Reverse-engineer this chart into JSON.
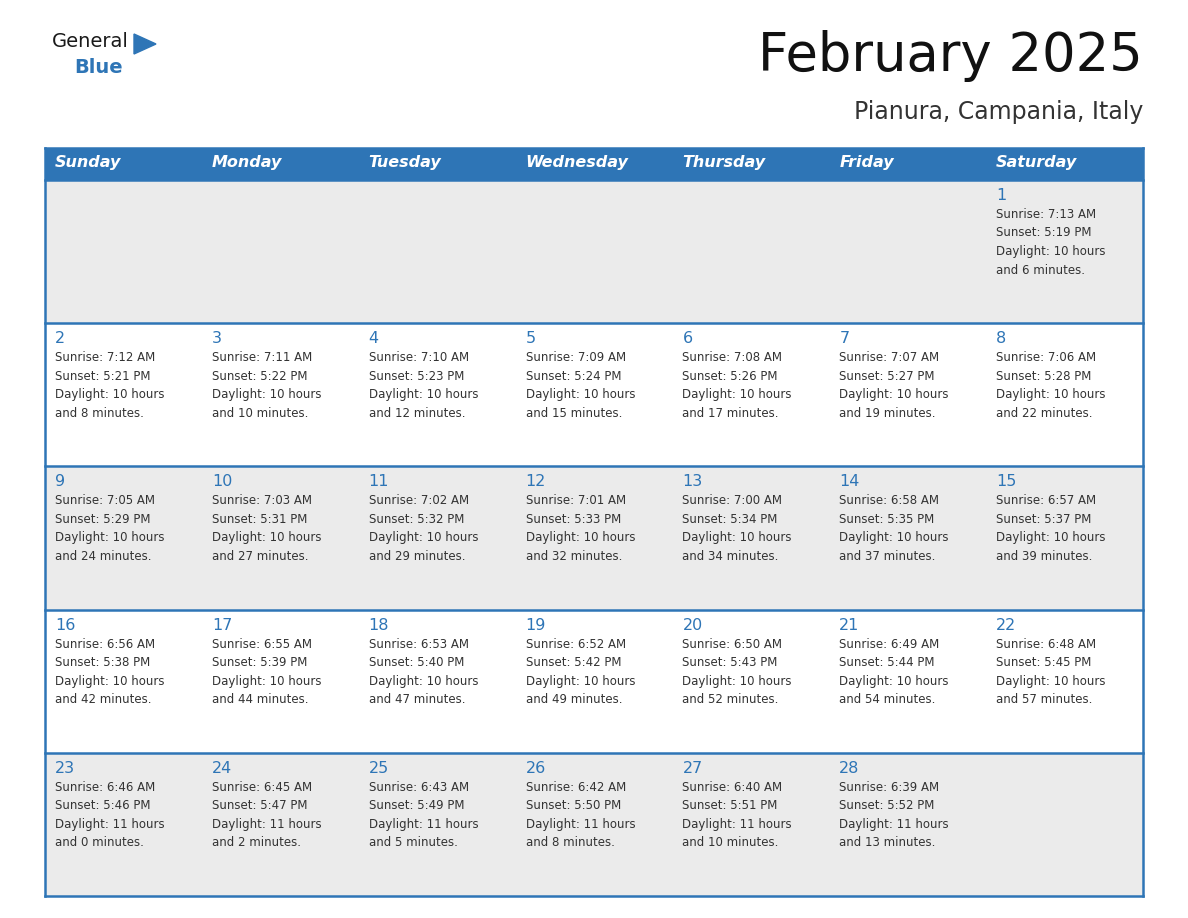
{
  "title": "February 2025",
  "subtitle": "Pianura, Campania, Italy",
  "header_bg_color": "#2E75B6",
  "header_text_color": "#FFFFFF",
  "cell_border_color": "#2E75B6",
  "day_number_color": "#2E75B6",
  "info_text_color": "#333333",
  "background_color": "#FFFFFF",
  "row_bg_even": "#FFFFFF",
  "row_bg_odd": "#EBEBEB",
  "days_of_week": [
    "Sunday",
    "Monday",
    "Tuesday",
    "Wednesday",
    "Thursday",
    "Friday",
    "Saturday"
  ],
  "weeks": [
    [
      {
        "day": null,
        "info": null
      },
      {
        "day": null,
        "info": null
      },
      {
        "day": null,
        "info": null
      },
      {
        "day": null,
        "info": null
      },
      {
        "day": null,
        "info": null
      },
      {
        "day": null,
        "info": null
      },
      {
        "day": "1",
        "info": "Sunrise: 7:13 AM\nSunset: 5:19 PM\nDaylight: 10 hours\nand 6 minutes."
      }
    ],
    [
      {
        "day": "2",
        "info": "Sunrise: 7:12 AM\nSunset: 5:21 PM\nDaylight: 10 hours\nand 8 minutes."
      },
      {
        "day": "3",
        "info": "Sunrise: 7:11 AM\nSunset: 5:22 PM\nDaylight: 10 hours\nand 10 minutes."
      },
      {
        "day": "4",
        "info": "Sunrise: 7:10 AM\nSunset: 5:23 PM\nDaylight: 10 hours\nand 12 minutes."
      },
      {
        "day": "5",
        "info": "Sunrise: 7:09 AM\nSunset: 5:24 PM\nDaylight: 10 hours\nand 15 minutes."
      },
      {
        "day": "6",
        "info": "Sunrise: 7:08 AM\nSunset: 5:26 PM\nDaylight: 10 hours\nand 17 minutes."
      },
      {
        "day": "7",
        "info": "Sunrise: 7:07 AM\nSunset: 5:27 PM\nDaylight: 10 hours\nand 19 minutes."
      },
      {
        "day": "8",
        "info": "Sunrise: 7:06 AM\nSunset: 5:28 PM\nDaylight: 10 hours\nand 22 minutes."
      }
    ],
    [
      {
        "day": "9",
        "info": "Sunrise: 7:05 AM\nSunset: 5:29 PM\nDaylight: 10 hours\nand 24 minutes."
      },
      {
        "day": "10",
        "info": "Sunrise: 7:03 AM\nSunset: 5:31 PM\nDaylight: 10 hours\nand 27 minutes."
      },
      {
        "day": "11",
        "info": "Sunrise: 7:02 AM\nSunset: 5:32 PM\nDaylight: 10 hours\nand 29 minutes."
      },
      {
        "day": "12",
        "info": "Sunrise: 7:01 AM\nSunset: 5:33 PM\nDaylight: 10 hours\nand 32 minutes."
      },
      {
        "day": "13",
        "info": "Sunrise: 7:00 AM\nSunset: 5:34 PM\nDaylight: 10 hours\nand 34 minutes."
      },
      {
        "day": "14",
        "info": "Sunrise: 6:58 AM\nSunset: 5:35 PM\nDaylight: 10 hours\nand 37 minutes."
      },
      {
        "day": "15",
        "info": "Sunrise: 6:57 AM\nSunset: 5:37 PM\nDaylight: 10 hours\nand 39 minutes."
      }
    ],
    [
      {
        "day": "16",
        "info": "Sunrise: 6:56 AM\nSunset: 5:38 PM\nDaylight: 10 hours\nand 42 minutes."
      },
      {
        "day": "17",
        "info": "Sunrise: 6:55 AM\nSunset: 5:39 PM\nDaylight: 10 hours\nand 44 minutes."
      },
      {
        "day": "18",
        "info": "Sunrise: 6:53 AM\nSunset: 5:40 PM\nDaylight: 10 hours\nand 47 minutes."
      },
      {
        "day": "19",
        "info": "Sunrise: 6:52 AM\nSunset: 5:42 PM\nDaylight: 10 hours\nand 49 minutes."
      },
      {
        "day": "20",
        "info": "Sunrise: 6:50 AM\nSunset: 5:43 PM\nDaylight: 10 hours\nand 52 minutes."
      },
      {
        "day": "21",
        "info": "Sunrise: 6:49 AM\nSunset: 5:44 PM\nDaylight: 10 hours\nand 54 minutes."
      },
      {
        "day": "22",
        "info": "Sunrise: 6:48 AM\nSunset: 5:45 PM\nDaylight: 10 hours\nand 57 minutes."
      }
    ],
    [
      {
        "day": "23",
        "info": "Sunrise: 6:46 AM\nSunset: 5:46 PM\nDaylight: 11 hours\nand 0 minutes."
      },
      {
        "day": "24",
        "info": "Sunrise: 6:45 AM\nSunset: 5:47 PM\nDaylight: 11 hours\nand 2 minutes."
      },
      {
        "day": "25",
        "info": "Sunrise: 6:43 AM\nSunset: 5:49 PM\nDaylight: 11 hours\nand 5 minutes."
      },
      {
        "day": "26",
        "info": "Sunrise: 6:42 AM\nSunset: 5:50 PM\nDaylight: 11 hours\nand 8 minutes."
      },
      {
        "day": "27",
        "info": "Sunrise: 6:40 AM\nSunset: 5:51 PM\nDaylight: 11 hours\nand 10 minutes."
      },
      {
        "day": "28",
        "info": "Sunrise: 6:39 AM\nSunset: 5:52 PM\nDaylight: 11 hours\nand 13 minutes."
      },
      {
        "day": null,
        "info": null
      }
    ]
  ]
}
